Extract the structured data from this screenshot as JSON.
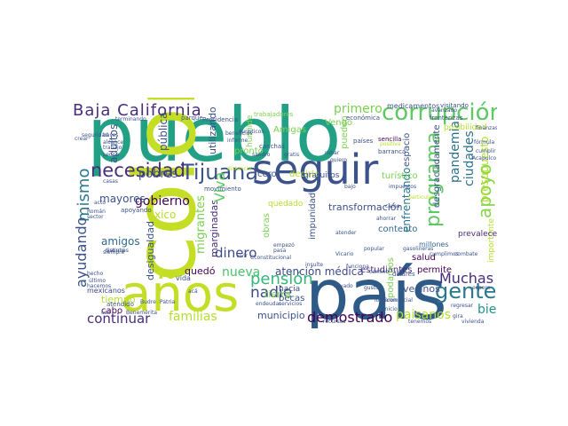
{
  "words": [
    {
      "id": "pueblo",
      "text": "pueblo",
      "color": "#21a085"
    },
    {
      "id": "colonia",
      "text": "colonia",
      "color": "#c3de25"
    },
    {
      "id": "pais",
      "text": "país",
      "color": "#2e5a87"
    },
    {
      "id": "anos",
      "text": "años",
      "color": "#c3de25"
    },
    {
      "id": "seguir",
      "text": "seguir",
      "color": "#3b528b"
    },
    {
      "id": "baja-california",
      "text": "Baja California",
      "color": "#472d7b"
    },
    {
      "id": "corrupcion",
      "text": "corrupción",
      "color": "#5ec962"
    },
    {
      "id": "tijuana",
      "text": "Tijuana",
      "color": "#3b528b"
    },
    {
      "id": "necesidad",
      "text": "necesidad",
      "color": "#472d7b"
    },
    {
      "id": "mismo",
      "text": "mismo",
      "color": "#2a788e"
    },
    {
      "id": "programa",
      "text": "programa",
      "color": "#5ec962"
    },
    {
      "id": "apoyo",
      "text": "apoyo",
      "color": "#86d549"
    },
    {
      "id": "gente",
      "text": "gente",
      "color": "#2a788e"
    },
    {
      "id": "muchas",
      "text": "Muchas",
      "color": "#472d7b"
    },
    {
      "id": "bien",
      "text": "bien",
      "color": "#21918c"
    },
    {
      "id": "ayudando",
      "text": "ayudando",
      "color": "#3b528b"
    },
    {
      "id": "demostrado",
      "text": "demostrado",
      "color": "#440154"
    },
    {
      "id": "paisanos",
      "text": "paisanos",
      "color": "#b5de2b"
    },
    {
      "id": "familias",
      "text": "familias",
      "color": "#b5de2b"
    },
    {
      "id": "continuar",
      "text": "continuar",
      "color": "#472d7b"
    },
    {
      "id": "pension",
      "text": "pensión",
      "color": "#35b779"
    },
    {
      "id": "nadie",
      "text": "nadie",
      "color": "#3e4989"
    },
    {
      "id": "nueva",
      "text": "nueva",
      "color": "#4ac16d"
    },
    {
      "id": "gobierno",
      "text": "gobierno",
      "color": "#440154"
    },
    {
      "id": "pobres",
      "text": "pobres",
      "color": "#3b528b"
    },
    {
      "id": "dinero",
      "text": "dinero",
      "color": "#3e4989"
    },
    {
      "id": "atencion-medica",
      "text": "atención médica",
      "color": "#3e4989"
    },
    {
      "id": "pandemia",
      "text": "pandemia",
      "color": "#2c728e"
    },
    {
      "id": "ciudades",
      "text": "ciudades",
      "color": "#2c728e"
    },
    {
      "id": "presupuesto",
      "text": "presupuesto",
      "color": "#b5de2b"
    },
    {
      "id": "enfrentando",
      "text": "enfrentando",
      "color": "#2a788e"
    },
    {
      "id": "primero",
      "text": "primero",
      "color": "#7ad151"
    },
    {
      "id": "amigos",
      "text": "amigos",
      "color": "#31688e"
    },
    {
      "id": "mayores",
      "text": "mayores",
      "color": "#3b528b"
    },
    {
      "id": "adultos",
      "text": "adultos",
      "color": "#3b528b"
    },
    {
      "id": "estudiantes",
      "text": "estudiantes",
      "color": "#472d7b"
    },
    {
      "id": "vecinos",
      "text": "vecinos",
      "color": "#3b528b"
    },
    {
      "id": "transformacion",
      "text": "transformación",
      "color": "#3b528b"
    },
    {
      "id": "contento",
      "text": "contento",
      "color": "#31688e"
    },
    {
      "id": "salud",
      "text": "salud",
      "color": "#440154"
    },
    {
      "id": "permite",
      "text": "permite",
      "color": "#440154"
    },
    {
      "id": "municipio",
      "text": "municipio",
      "color": "#3b528b"
    },
    {
      "id": "quedo",
      "text": "quedó",
      "color": "#440154"
    },
    {
      "id": "migrantes",
      "text": "migrantes",
      "color": "#7ad151"
    },
    {
      "id": "marginadas",
      "text": "marginadas",
      "color": "#472d7b"
    },
    {
      "id": "desigualdad",
      "text": "desigualdad",
      "color": "#3b528b"
    },
    {
      "id": "tiempo",
      "text": "tiempo",
      "color": "#b5de2b"
    },
    {
      "id": "cabo",
      "text": "cabo",
      "color": "#440154"
    },
    {
      "id": "mexicanos",
      "text": "mexicanos",
      "color": "#3e4989"
    },
    {
      "id": "becas",
      "text": "becas",
      "color": "#3b528b"
    },
    {
      "id": "tierra",
      "text": "tierra",
      "color": "#7ad151"
    },
    {
      "id": "importante",
      "text": "importante",
      "color": "#b5de2b"
    },
    {
      "id": "prevalece",
      "text": "prevalece",
      "color": "#472d7b"
    },
    {
      "id": "millones",
      "text": "millones",
      "color": "#31688e"
    },
    {
      "id": "amigas",
      "text": "Amigas",
      "color": "#7ad151"
    },
    {
      "id": "viva",
      "text": "Viva",
      "color": "#5ec962"
    },
    {
      "id": "decirle",
      "text": "decirle",
      "color": "#b5de2b"
    },
    {
      "id": "cero",
      "text": "cero",
      "color": "#3b528b"
    },
    {
      "id": "pronto",
      "text": "pronto",
      "color": "#7ad151"
    },
    {
      "id": "publica",
      "text": "pública",
      "color": "#3b528b"
    },
    {
      "id": "utilizando",
      "text": "utilizando",
      "color": "#3b528b"
    },
    {
      "id": "turistico",
      "text": "turístico",
      "color": "#7ad151"
    },
    {
      "id": "espacio",
      "text": "espacio",
      "color": "#3b528b"
    },
    {
      "id": "desgraciadamente",
      "text": "desgraciadamente",
      "color": "#3b528b"
    },
    {
      "id": "impunidad",
      "text": "impunidad",
      "color": "#3b528b"
    },
    {
      "id": "podamos",
      "text": "podamos",
      "color": "#7ad151"
    },
    {
      "id": "vengo",
      "text": "Vengo",
      "color": "#7ad151"
    },
    {
      "id": "pueden",
      "text": "pueden",
      "color": "#7ad151"
    },
    {
      "id": "obras",
      "text": "obras",
      "color": "#7ad151"
    },
    {
      "id": "xico",
      "text": "xico",
      "color": "#b5de2b"
    },
    {
      "id": "quedado",
      "text": "quedado",
      "color": "#b5de2b"
    },
    {
      "id": "hacia",
      "text": "hacia",
      "color": "#3b528b"
    },
    {
      "id": "vida",
      "text": "vida",
      "color": "#3b528b"
    },
    {
      "id": "gratuitos",
      "text": "gratuitos",
      "color": "#3b528b"
    },
    {
      "id": "humilde",
      "text": "humilde",
      "color": "#7ad151"
    },
    {
      "id": "medicamentos",
      "text": "medicamentos",
      "color": "#3b528b"
    },
    {
      "id": "visitando",
      "text": "visitando",
      "color": "#3b528b"
    },
    {
      "id": "economica",
      "text": "económica",
      "color": "#3b528b"
    },
    {
      "id": "posibilidad",
      "text": "posibilidad",
      "color": "#b5de2b"
    },
    {
      "id": "presidencia",
      "text": "Presidencia",
      "color": "#3b528b"
    },
    {
      "id": "trabajadores",
      "text": "trabajadores",
      "color": "#7ad151"
    },
    {
      "id": "parque",
      "text": "parque",
      "color": "#3b528b"
    },
    {
      "id": "terminando",
      "text": "terminando",
      "color": "#3b528b"
    },
    {
      "id": "turisticos",
      "text": "turísticos",
      "color": "#3b528b"
    },
    {
      "id": "canchas",
      "text": "canchas",
      "color": "#3b528b"
    },
    {
      "id": "rubar",
      "text": "rubar",
      "color": "#3b528b"
    },
    {
      "id": "sencilla",
      "text": "sencilla",
      "color": "#440154"
    },
    {
      "id": "barranca",
      "text": "barranca",
      "color": "#3b528b"
    },
    {
      "id": "positiva",
      "text": "positiva",
      "color": "#b5de2b"
    },
    {
      "id": "dolares",
      "text": "dólares",
      "color": "#3b528b"
    },
    {
      "id": "fronterizas",
      "text": "fronterizas",
      "color": "#3b528b"
    },
    {
      "id": "formula",
      "text": "fórmula",
      "color": "#3b528b"
    },
    {
      "id": "cumplir",
      "text": "cumplir",
      "color": "#3b528b"
    },
    {
      "id": "acapulco",
      "text": "Acapulco",
      "color": "#3b528b"
    },
    {
      "id": "crear",
      "text": "crear",
      "color": "#3b528b"
    },
    {
      "id": "bases",
      "text": "bases",
      "color": "#3b528b"
    },
    {
      "id": "alcance",
      "text": "alcance",
      "color": "#3b528b"
    },
    {
      "id": "trabajo",
      "text": "trabajo",
      "color": "#3b528b"
    },
    {
      "id": "leona",
      "text": "Leona",
      "color": "#3b528b"
    },
    {
      "id": "informe",
      "text": "informe",
      "color": "#3b528b"
    },
    {
      "id": "beneficios",
      "text": "beneficios",
      "color": "#3b528b"
    },
    {
      "id": "paises",
      "text": "países",
      "color": "#3b528b"
    },
    {
      "id": "quiero",
      "text": "quiero",
      "color": "#3b528b"
    },
    {
      "id": "apoyando",
      "text": "apoyando",
      "color": "#3b528b"
    },
    {
      "id": "movimiento",
      "text": "movimiento",
      "color": "#3b528b"
    },
    {
      "id": "distancia",
      "text": "distancia",
      "color": "#b5de2b"
    },
    {
      "id": "impuestos",
      "text": "impuestos",
      "color": "#3b528b"
    },
    {
      "id": "particular",
      "text": "particular",
      "color": "#b5de2b"
    },
    {
      "id": "atendido",
      "text": "atendido",
      "color": "#3b528b"
    },
    {
      "id": "siempre",
      "text": "siempre",
      "color": "#3b528b"
    },
    {
      "id": "roman",
      "text": "Román",
      "color": "#3b528b"
    },
    {
      "id": "acto",
      "text": "acto",
      "color": "#3b528b"
    },
    {
      "id": "sector",
      "text": "sector",
      "color": "#3b528b"
    },
    {
      "id": "ahorrar",
      "text": "ahorrar",
      "color": "#3b528b"
    },
    {
      "id": "atender",
      "text": "atender",
      "color": "#3b528b"
    },
    {
      "id": "vicario",
      "text": "Vicario",
      "color": "#3b528b"
    },
    {
      "id": "popular",
      "text": "popular",
      "color": "#3b528b"
    },
    {
      "id": "cumplimos",
      "text": "cumplimos",
      "color": "#3b528b"
    },
    {
      "id": "combate",
      "text": "combate",
      "color": "#3b528b"
    },
    {
      "id": "gasolineras",
      "text": "gasolineras",
      "color": "#3b528b"
    },
    {
      "id": "empezo",
      "text": "empezó",
      "color": "#3b528b"
    },
    {
      "id": "pasa",
      "text": "pasa",
      "color": "#3b528b"
    },
    {
      "id": "vivir",
      "text": "vivir",
      "color": "#3b528b"
    },
    {
      "id": "insulte",
      "text": "insulte",
      "color": "#3b528b"
    },
    {
      "id": "llevado",
      "text": "llevado",
      "color": "#3b528b"
    },
    {
      "id": "gusto",
      "text": "gusto",
      "color": "#3b528b"
    },
    {
      "id": "espero",
      "text": "espero",
      "color": "#3b528b"
    },
    {
      "id": "cconstitucional",
      "text": "Cconstitucional",
      "color": "#3b528b"
    },
    {
      "id": "funciona",
      "text": "funciona",
      "color": "#3b528b"
    },
    {
      "id": "servicios",
      "text": "servicios",
      "color": "#3b528b"
    },
    {
      "id": "endeudar",
      "text": "endeudar",
      "color": "#3b528b"
    },
    {
      "id": "regresar",
      "text": "regresar",
      "color": "#3b528b"
    },
    {
      "id": "vivienda",
      "text": "vivienda",
      "color": "#3b528b"
    },
    {
      "id": "patria",
      "text": "Patria",
      "color": "#3b528b"
    },
    {
      "id": "hecho",
      "text": "hecho",
      "color": "#3b528b"
    },
    {
      "id": "ultimo",
      "text": "último",
      "color": "#3b528b"
    },
    {
      "id": "hacemos",
      "text": "hacemos",
      "color": "#3b528b"
    },
    {
      "id": "vacunas",
      "text": "vacunas",
      "color": "#3b528b"
    },
    {
      "id": "aca",
      "text": "acá",
      "color": "#3b528b"
    },
    {
      "id": "usa",
      "text": "usa",
      "color": "#3b528b"
    },
    {
      "id": "budre",
      "text": "Budre",
      "color": "#3b528b"
    },
    {
      "id": "benemerita",
      "text": "Benemérita",
      "color": "#3b528b"
    },
    {
      "id": "lograron",
      "text": "lograron",
      "color": "#3b528b"
    },
    {
      "id": "ecomercial",
      "text": "Ecomercial",
      "color": "#3b528b"
    },
    {
      "id": "camino",
      "text": "camino",
      "color": "#3b528b"
    },
    {
      "id": "finanzas",
      "text": "finanzas",
      "color": "#3b528b"
    },
    {
      "id": "distinto",
      "text": "distinto",
      "color": "#3b528b"
    },
    {
      "id": "recursos",
      "text": "recursos",
      "color": "#3b528b"
    },
    {
      "id": "tenemos",
      "text": "tenemos",
      "color": "#3b528b"
    },
    {
      "id": "cama",
      "text": "cama",
      "color": "#3b528b"
    },
    {
      "id": "casas",
      "text": "casas",
      "color": "#3b528b"
    },
    {
      "id": "inicio",
      "text": "inicio",
      "color": "#3b528b"
    },
    {
      "id": "gira",
      "text": "gira",
      "color": "#3b528b"
    },
    {
      "id": "bajo",
      "text": "bajo",
      "color": "#3b528b"
    },
    {
      "id": "seguridad",
      "text": "seguridad",
      "color": "#3b528b"
    },
    {
      "id": "avanzado",
      "text": "avanzado",
      "color": "#3b528b"
    },
    {
      "id": "sandro",
      "text": "sandro",
      "color": "#3b528b"
    },
    {
      "id": "gratis",
      "text": "gratis",
      "color": "#3b528b"
    }
  ]
}
